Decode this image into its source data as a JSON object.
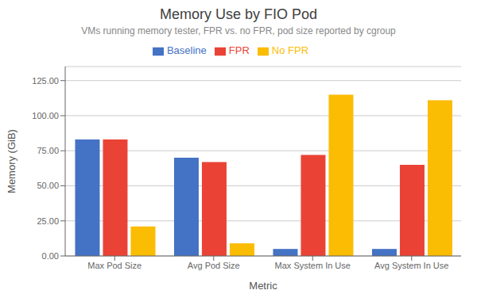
{
  "chart_data": {
    "type": "bar",
    "title": "Memory Use by FIO Pod",
    "subtitle": "VMs running memory tester, FPR vs. no FPR, pod size reported by cgroup",
    "xlabel": "Metric",
    "ylabel": "Memory (GiB)",
    "categories": [
      "Max Pod Size",
      "Avg Pod Size",
      "Max System In Use",
      "Avg System In Use"
    ],
    "series": [
      {
        "name": "Baseline",
        "color": "#4472C4",
        "values": [
          83.0,
          70.0,
          5.0,
          5.0
        ]
      },
      {
        "name": "FPR",
        "color": "#EA4335",
        "values": [
          83.0,
          67.0,
          72.0,
          65.0
        ]
      },
      {
        "name": "No FPR",
        "color": "#FBBC04",
        "values": [
          21.0,
          9.0,
          115.0,
          111.0
        ]
      }
    ],
    "ylim": [
      0,
      135
    ],
    "yticks": [
      {
        "value": 0,
        "label": "0.00"
      },
      {
        "value": 25,
        "label": "25.00"
      },
      {
        "value": 50,
        "label": "50.00"
      },
      {
        "value": 75,
        "label": "75.00"
      },
      {
        "value": 100,
        "label": "100.00"
      },
      {
        "value": 125,
        "label": "125.00"
      }
    ],
    "grid": true,
    "legend": "top"
  }
}
